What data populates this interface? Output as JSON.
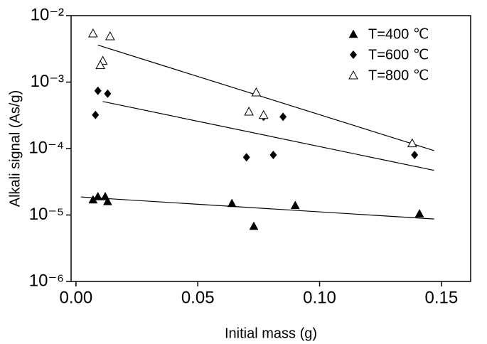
{
  "chart_data": {
    "type": "scatter",
    "xlabel": "Initial mass (g)",
    "ylabel": "Alkali signal (As/g)",
    "xlim": [
      -0.002,
      0.162
    ],
    "xticks": [
      {
        "value": 0,
        "label": "0.00"
      },
      0.05,
      {
        "value": 0.1,
        "label": "0.10"
      },
      0.15
    ],
    "ylim": [
      1e-06,
      0.01
    ],
    "yscale": "log",
    "yticks": [
      {
        "value": 1e-06,
        "label": "10⁻⁶"
      },
      {
        "value": 1e-05,
        "label": "10⁻⁵"
      },
      {
        "value": 0.0001,
        "label": "10⁻⁴"
      },
      {
        "value": 0.001,
        "label": "10⁻³"
      },
      {
        "value": 0.01,
        "label": "10⁻²"
      }
    ],
    "legend": "top-right",
    "series": [
      {
        "name": "T=400 ℃",
        "color": "#000000",
        "marker": "triangle-filled",
        "x": [
          0.007,
          0.009,
          0.012,
          0.013,
          0.064,
          0.073,
          0.09,
          0.141
        ],
        "values": [
          1.7e-05,
          1.9e-05,
          1.9e-05,
          1.6e-05,
          1.5e-05,
          6.8e-06,
          1.4e-05,
          1.05e-05
        ]
      },
      {
        "name": "T=600 ℃",
        "color": "#000000",
        "marker": "diamond",
        "x": [
          0.008,
          0.009,
          0.013,
          0.07,
          0.077,
          0.081,
          0.085,
          0.139
        ],
        "values": [
          0.00032,
          0.00074,
          0.00067,
          7.4e-05,
          0.0003,
          8e-05,
          0.0003,
          8e-05
        ]
      },
      {
        "name": "T=800 ℃",
        "color": "#000000",
        "marker": "triangle-open",
        "x": [
          0.007,
          0.014,
          0.011,
          0.01,
          0.071,
          0.074,
          0.077,
          0.138
        ],
        "values": [
          0.0054,
          0.0049,
          0.0021,
          0.0018,
          0.00036,
          0.0007,
          0.00032,
          0.00012
        ]
      }
    ],
    "fits": [
      {
        "color": "#000000",
        "x": [
          0.002,
          0.147
        ],
        "values": [
          1.87e-05,
          8.7e-06
        ]
      },
      {
        "color": "#000000",
        "x": [
          0.011,
          0.147
        ],
        "values": [
          0.00051,
          4.7e-05
        ]
      },
      {
        "color": "#000000",
        "x": [
          0.009,
          0.147
        ],
        "values": [
          0.0036,
          9.3e-05
        ]
      }
    ]
  }
}
